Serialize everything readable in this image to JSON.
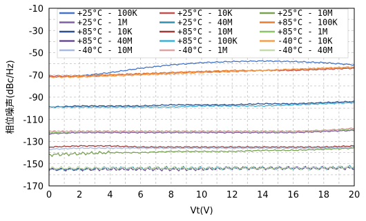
{
  "chart_data": {
    "type": "line",
    "title": "",
    "xlabel": "Vt(V)",
    "ylabel": "相位噪声(dBc/Hz)",
    "xlim": [
      0,
      20
    ],
    "ylim": [
      -170,
      -10
    ],
    "xticks": [
      "0",
      "2",
      "4",
      "6",
      "8",
      "10",
      "12",
      "14",
      "16",
      "18",
      "20"
    ],
    "yticks": [
      "-10",
      "-30",
      "-50",
      "-70",
      "-90",
      "-110",
      "-130",
      "-150",
      "-170"
    ],
    "grid": true,
    "legend": "top",
    "series": [
      {
        "name": "+25°C - 100K",
        "color": "#4472c4",
        "x": [
          0,
          2,
          4,
          6,
          8,
          10,
          12,
          14,
          16,
          18,
          20
        ],
        "y": [
          -72,
          -71,
          -68,
          -64,
          -61,
          -59,
          -58,
          -57.5,
          -58,
          -59,
          -61
        ]
      },
      {
        "name": "+25°C - 10K",
        "color": "#c0504d",
        "x": [
          0,
          2,
          4,
          6,
          8,
          10,
          12,
          14,
          16,
          18,
          20
        ],
        "y": [
          -71,
          -71,
          -70,
          -69,
          -68,
          -67,
          -67,
          -66,
          -66,
          -65,
          -64
        ]
      },
      {
        "name": "+25°C - 10M",
        "color": "#77a34f",
        "x": [
          0,
          2,
          4,
          6,
          8,
          10,
          12,
          14,
          16,
          18,
          20
        ],
        "y": [
          -142,
          -141,
          -140,
          -140,
          -139,
          -139,
          -139,
          -138,
          -138,
          -137,
          -136
        ]
      },
      {
        "name": "+25°C - 1M",
        "color": "#7d5ea4",
        "x": [
          0,
          2,
          4,
          6,
          8,
          10,
          12,
          14,
          16,
          18,
          20
        ],
        "y": [
          -123,
          -122,
          -122,
          -122,
          -122,
          -122,
          -122,
          -122,
          -122,
          -121,
          -120
        ]
      },
      {
        "name": "+25°C - 40M",
        "color": "#2f8fb0",
        "x": [
          0,
          2,
          4,
          6,
          8,
          10,
          12,
          14,
          16,
          18,
          20
        ],
        "y": [
          -155,
          -155,
          -154,
          -154,
          -154,
          -154,
          -154,
          -154,
          -154,
          -154,
          -153
        ]
      },
      {
        "name": "+85°C - 100K",
        "color": "#e87d2e",
        "x": [
          0,
          2,
          4,
          6,
          8,
          10,
          12,
          14,
          16,
          18,
          20
        ],
        "y": [
          -72,
          -71,
          -70,
          -69,
          -68,
          -67,
          -66,
          -66,
          -65,
          -64,
          -63
        ]
      },
      {
        "name": "+85°C - 10K",
        "color": "#2e4f8a",
        "x": [
          0,
          2,
          4,
          6,
          8,
          10,
          12,
          14,
          16,
          18,
          20
        ],
        "y": [
          -99,
          -98,
          -98,
          -98,
          -97,
          -97,
          -97,
          -96,
          -96,
          -95,
          -94
        ]
      },
      {
        "name": "+85°C - 10M",
        "color": "#9e3a37",
        "x": [
          0,
          2,
          4,
          6,
          8,
          10,
          12,
          14,
          16,
          18,
          20
        ],
        "y": [
          -135,
          -134,
          -134,
          -135,
          -135,
          -135,
          -135,
          -135,
          -135,
          -135,
          -134
        ]
      },
      {
        "name": "+85°C - 1M",
        "color": "#8cc46a",
        "x": [
          0,
          2,
          4,
          6,
          8,
          10,
          12,
          14,
          16,
          18,
          20
        ],
        "y": [
          -122,
          -121,
          -121,
          -121,
          -121,
          -121,
          -121,
          -121,
          -121,
          -120,
          -119
        ]
      },
      {
        "name": "+85°C - 40M",
        "color": "#6a4c93",
        "x": [
          0,
          2,
          4,
          6,
          8,
          10,
          12,
          14,
          16,
          18,
          20
        ],
        "y": [
          -155,
          -155,
          -155,
          -155,
          -155,
          -155,
          -154,
          -154,
          -154,
          -154,
          -154
        ]
      },
      {
        "name": "+85°C - 100K",
        "color": "#3fb1d4",
        "x": [
          0,
          2,
          4,
          6,
          8,
          10,
          12,
          14,
          16,
          18,
          20
        ],
        "y": [
          -99,
          -99,
          -99,
          -99,
          -99,
          -98,
          -98,
          -98,
          -97,
          -96,
          -95
        ]
      },
      {
        "name": "-40°C - 10K",
        "color": "#f0a050",
        "x": [
          0,
          2,
          4,
          6,
          8,
          10,
          12,
          14,
          16,
          18,
          20
        ],
        "y": [
          -72,
          -72,
          -71,
          -70,
          -69,
          -68,
          -67,
          -66,
          -65,
          -64,
          -63
        ]
      },
      {
        "name": "-40°C - 10M",
        "color": "#a7b9df",
        "x": [
          0,
          2,
          4,
          6,
          8,
          10,
          12,
          14,
          16,
          18,
          20
        ],
        "y": [
          -137,
          -136,
          -136,
          -136,
          -136,
          -136,
          -136,
          -136,
          -136,
          -136,
          -135
        ]
      },
      {
        "name": "-40°C - 1M",
        "color": "#dba3a1",
        "x": [
          0,
          2,
          4,
          6,
          8,
          10,
          12,
          14,
          16,
          18,
          20
        ],
        "y": [
          -121,
          -121,
          -121,
          -121,
          -121,
          -121,
          -121,
          -121,
          -121,
          -120,
          -118
        ]
      },
      {
        "name": "-40°C - 40M",
        "color": "#c4dca9",
        "x": [
          0,
          2,
          4,
          6,
          8,
          10,
          12,
          14,
          16,
          18,
          20
        ],
        "y": [
          -154,
          -154,
          -154,
          -154,
          -154,
          -154,
          -154,
          -154,
          -154,
          -154,
          -153
        ]
      }
    ]
  }
}
